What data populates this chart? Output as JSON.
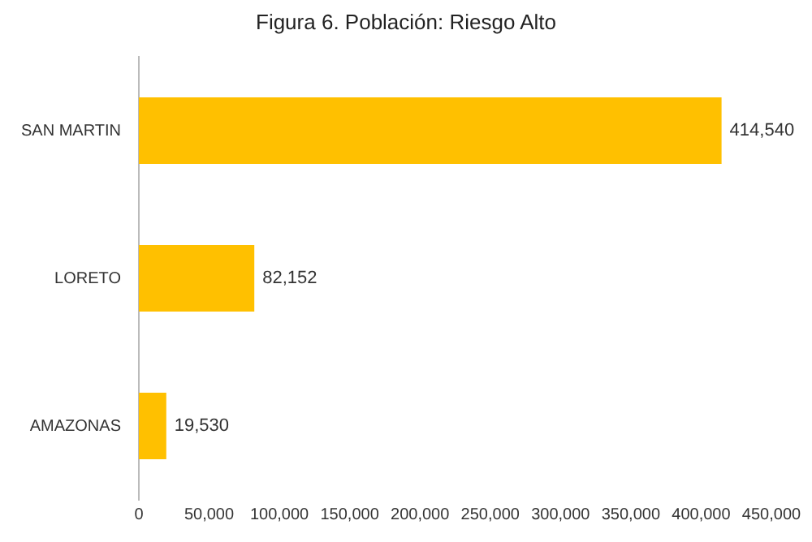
{
  "chart_data": {
    "type": "bar",
    "orientation": "horizontal",
    "title": "Figura 6. Población: Riesgo Alto",
    "categories": [
      "SAN MARTIN",
      "LORETO",
      "AMAZONAS"
    ],
    "values": [
      414540,
      82152,
      19530
    ],
    "value_labels": [
      "414,540",
      "82,152",
      "19,530"
    ],
    "color": "#ffc000",
    "xlim": [
      0,
      450000
    ],
    "xticks": [
      0,
      {
        "value": 50000,
        "label": "50,000"
      },
      {
        "value": 100000,
        "label": "100,000"
      },
      {
        "value": 150000,
        "label": "150,000"
      },
      {
        "value": 200000,
        "label": "200,000"
      },
      {
        "value": 250000,
        "label": "250,000"
      },
      {
        "value": 300000,
        "label": "300,000"
      },
      {
        "value": 350000,
        "label": "350,000"
      },
      {
        "value": 400000,
        "label": "400,000"
      },
      {
        "value": 450000,
        "label": "450,000"
      }
    ],
    "grid": false,
    "legend": false
  }
}
